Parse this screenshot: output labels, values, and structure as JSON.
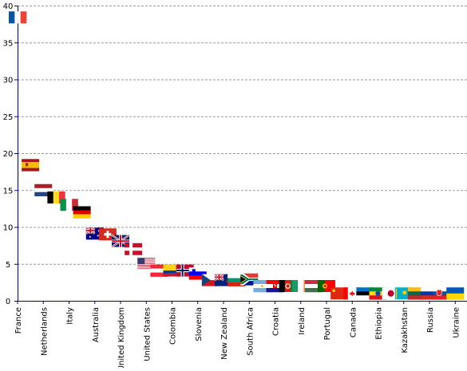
{
  "chart_data": {
    "type": "scatter",
    "marker": "flag",
    "ylim": [
      0,
      40
    ],
    "yticks": [
      0,
      5,
      10,
      15,
      20,
      25,
      30,
      35,
      40
    ],
    "grid": true,
    "x_labels": [
      "France",
      "Netherlands",
      "Italy",
      "Australia",
      "United Kingdom",
      "United States",
      "Colombia",
      "Slovenia",
      "New Zealand",
      "South Africa",
      "Croatia",
      "Ireland",
      "Portugal",
      "Canada",
      "Ethiopia",
      "Kazakhstan",
      "Russia",
      "Ukraine"
    ],
    "points": [
      {
        "country": "France",
        "value": 38.4,
        "flag": "france",
        "labeled": true
      },
      {
        "country": "Spain",
        "value": 18.4,
        "flag": "spain",
        "labeled": false
      },
      {
        "country": "Netherlands",
        "value": 15.0,
        "flag": "netherlands",
        "labeled": true
      },
      {
        "country": "Belgium",
        "value": 14.0,
        "flag": "belgium",
        "labeled": false
      },
      {
        "country": "Italy",
        "value": 13.0,
        "flag": "italy",
        "labeled": true
      },
      {
        "country": "Germany",
        "value": 12.0,
        "flag": "germany",
        "labeled": false
      },
      {
        "country": "Australia",
        "value": 9.1,
        "flag": "australia",
        "labeled": true
      },
      {
        "country": "Switzerland",
        "value": 9.0,
        "flag": "switzerland",
        "labeled": false
      },
      {
        "country": "United Kingdom",
        "value": 8.1,
        "flag": "uk",
        "labeled": true
      },
      {
        "country": "Denmark",
        "value": 7.0,
        "flag": "denmark",
        "labeled": false
      },
      {
        "country": "United States",
        "value": 5.0,
        "flag": "usa",
        "labeled": true
      },
      {
        "country": "Austria",
        "value": 4.1,
        "flag": "austria",
        "labeled": false
      },
      {
        "country": "Colombia",
        "value": 4.1,
        "flag": "colombia",
        "labeled": true
      },
      {
        "country": "Norway",
        "value": 4.1,
        "flag": "norway",
        "labeled": false
      },
      {
        "country": "Slovenia",
        "value": 3.7,
        "flag": "slovenia",
        "labeled": true
      },
      {
        "country": "Czech Republic",
        "value": 2.8,
        "flag": "czech",
        "labeled": false
      },
      {
        "country": "New Zealand",
        "value": 2.8,
        "flag": "newzealand",
        "labeled": true
      },
      {
        "country": "Bulgaria",
        "value": 2.8,
        "flag": "bulgaria",
        "labeled": false
      },
      {
        "country": "South Africa",
        "value": 2.9,
        "flag": "southafrica",
        "labeled": true
      },
      {
        "country": "Argentina",
        "value": 2.0,
        "flag": "argentina",
        "labeled": false
      },
      {
        "country": "Croatia",
        "value": 2.0,
        "flag": "croatia",
        "labeled": true
      },
      {
        "country": "Afghanistan",
        "value": 2.0,
        "flag": "afghanistan",
        "labeled": false
      },
      {
        "country": "Ireland",
        "value": 2.0,
        "flag": "ireland",
        "labeled": true
      },
      {
        "country": "Hungary",
        "value": 2.0,
        "flag": "hungary",
        "labeled": false
      },
      {
        "country": "Portugal",
        "value": 2.0,
        "flag": "portugal",
        "labeled": true
      },
      {
        "country": "China",
        "value": 1.0,
        "flag": "china",
        "labeled": false
      },
      {
        "country": "Canada",
        "value": 1.0,
        "flag": "canada",
        "labeled": true
      },
      {
        "country": "Estonia",
        "value": 1.0,
        "flag": "estonia",
        "labeled": false
      },
      {
        "country": "Ethiopia",
        "value": 1.0,
        "flag": "ethiopia",
        "labeled": true
      },
      {
        "country": "Japan",
        "value": 1.0,
        "flag": "japan",
        "labeled": false
      },
      {
        "country": "Kazakhstan",
        "value": 1.0,
        "flag": "kazakhstan",
        "labeled": true
      },
      {
        "country": "Lithuania",
        "value": 1.0,
        "flag": "lithuania",
        "labeled": false
      },
      {
        "country": "Russia",
        "value": 1.0,
        "flag": "russia",
        "labeled": true
      },
      {
        "country": "Slovakia",
        "value": 1.0,
        "flag": "slovakia",
        "labeled": false
      },
      {
        "country": "Ukraine",
        "value": 1.0,
        "flag": "ukraine",
        "labeled": true
      }
    ]
  }
}
